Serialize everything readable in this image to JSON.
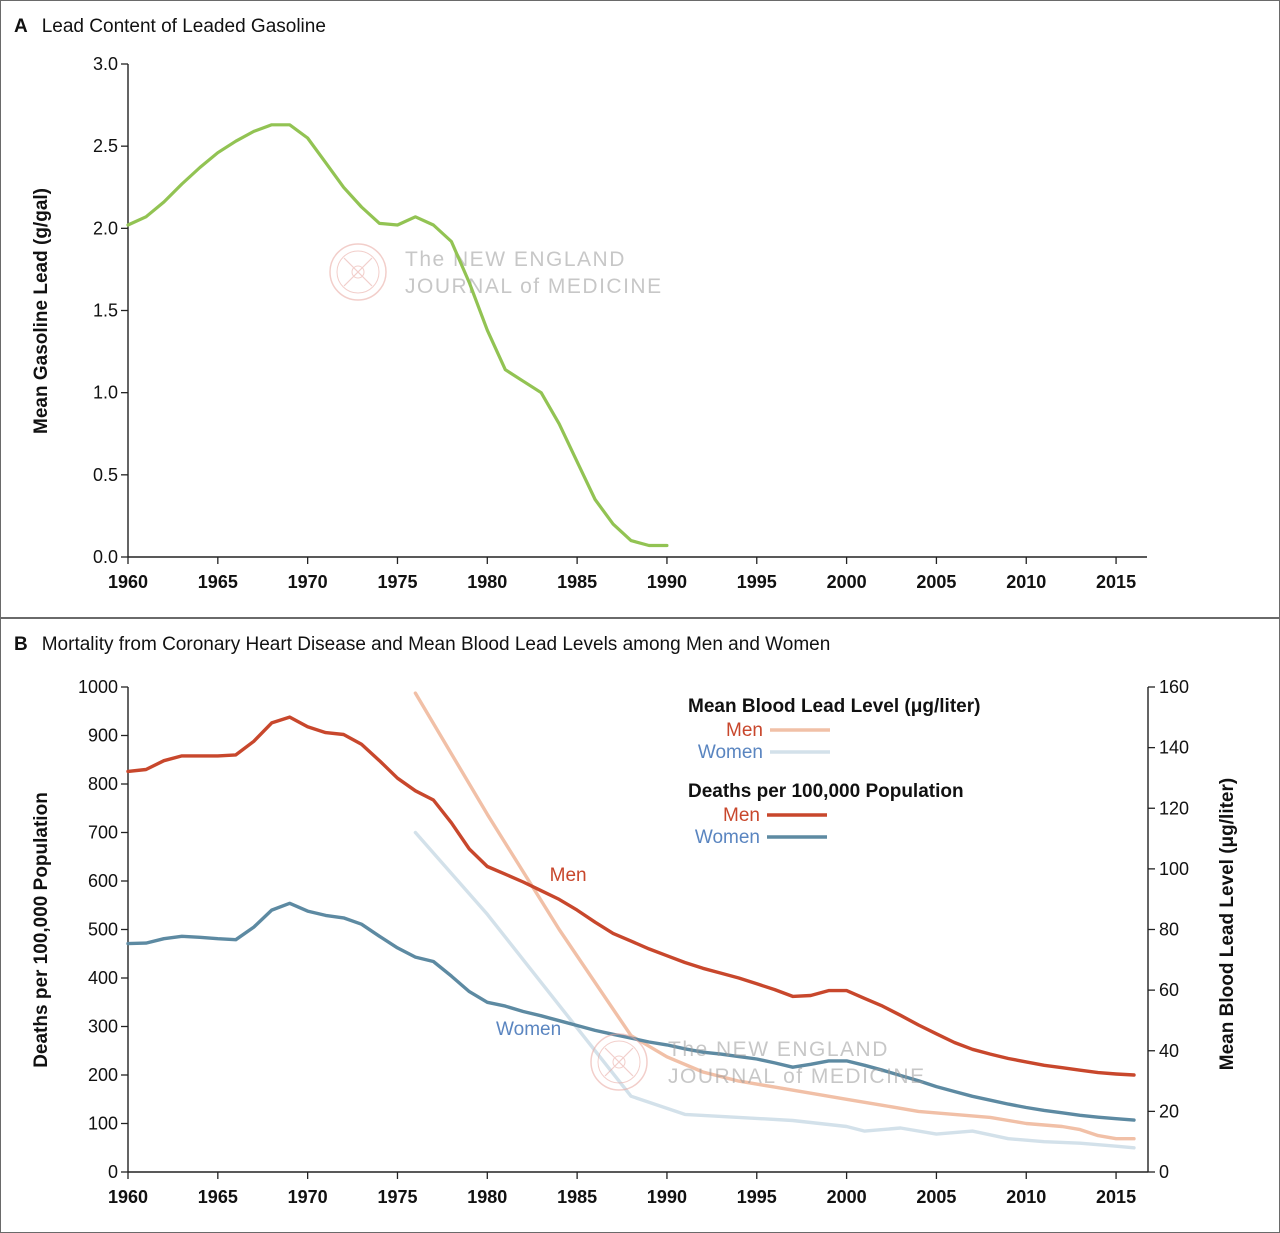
{
  "watermark": {
    "line1": "The NEW ENGLAND",
    "line2": "JOURNAL of MEDICINE"
  },
  "panelA": {
    "letter": "A",
    "title": "Lead Content of Leaded Gasoline",
    "chart_data": {
      "type": "line",
      "xlabel": "",
      "ylabel": "Mean Gasoline Lead (g/gal)",
      "xlim": [
        1960,
        2017
      ],
      "ylim": [
        0,
        3.0
      ],
      "xticks": [
        1960,
        1965,
        1970,
        1975,
        1980,
        1985,
        1990,
        1995,
        2000,
        2005,
        2010,
        2015
      ],
      "yticks": [
        0.0,
        0.5,
        1.0,
        1.5,
        2.0,
        2.5,
        3.0
      ],
      "ytick_labels": [
        "0.0",
        "0.5",
        "1.0",
        "1.5",
        "2.0",
        "2.5",
        "3.0"
      ],
      "grid": false,
      "series": [
        {
          "color": "#92c353",
          "x": [
            1960,
            1961,
            1962,
            1963,
            1964,
            1965,
            1966,
            1967,
            1968,
            1969,
            1970,
            1971,
            1972,
            1973,
            1974,
            1975,
            1976,
            1977,
            1978,
            1979,
            1980,
            1981,
            1982,
            1983,
            1984,
            1985,
            1986,
            1987,
            1988,
            1989,
            1990
          ],
          "y": [
            2.02,
            2.07,
            2.16,
            2.27,
            2.37,
            2.46,
            2.53,
            2.59,
            2.63,
            2.63,
            2.55,
            2.4,
            2.25,
            2.13,
            2.03,
            2.02,
            2.07,
            2.02,
            1.92,
            1.67,
            1.38,
            1.14,
            1.07,
            1.0,
            0.81,
            0.58,
            0.35,
            0.2,
            0.1,
            0.07,
            0.07
          ]
        }
      ]
    }
  },
  "panelB": {
    "letter": "B",
    "title": "Mortality from Coronary Heart Disease and Mean Blood Lead Levels among Men and Women",
    "chart_data": {
      "type": "line",
      "xlabel": "",
      "ylabel": "Deaths per 100,000 Population",
      "y2label": "Mean Blood Lead Level (μg/liter)",
      "xlim": [
        1960,
        2017
      ],
      "ylim": [
        0,
        1000
      ],
      "y2lim": [
        0,
        160
      ],
      "xticks": [
        1960,
        1965,
        1970,
        1975,
        1980,
        1985,
        1990,
        1995,
        2000,
        2005,
        2010,
        2015
      ],
      "yticks": [
        0,
        100,
        200,
        300,
        400,
        500,
        600,
        700,
        800,
        900,
        1000
      ],
      "y2ticks": [
        0,
        20,
        40,
        60,
        80,
        100,
        120,
        140,
        160
      ],
      "grid": false,
      "legend_placement": "top-right",
      "annotations": [
        {
          "text": "Men",
          "x": 1984.5,
          "y": 600,
          "color": "#c8472c"
        },
        {
          "text": "Women",
          "x": 1982.3,
          "y": 282,
          "color": "#5a85c0"
        }
      ],
      "legend": {
        "group1_title": "Mean Blood Lead Level (μg/liter)",
        "group1_men": "Men",
        "group1_women": "Women",
        "group2_title": "Deaths per 100,000 Population",
        "group2_men": "Men",
        "group2_women": "Women"
      },
      "series": [
        {
          "name": "Men",
          "group": "Deaths per 100,000 Population",
          "axis": "left",
          "color": "#c8472c",
          "x": [
            1960,
            1961,
            1962,
            1963,
            1964,
            1965,
            1966,
            1967,
            1968,
            1969,
            1970,
            1971,
            1972,
            1973,
            1974,
            1975,
            1976,
            1977,
            1978,
            1979,
            1980,
            1981,
            1982,
            1983,
            1984,
            1985,
            1986,
            1987,
            1988,
            1989,
            1990,
            1991,
            1992,
            1993,
            1994,
            1995,
            1996,
            1997,
            1998,
            1999,
            2000,
            2001,
            2002,
            2003,
            2004,
            2005,
            2006,
            2007,
            2008,
            2009,
            2010,
            2011,
            2012,
            2013,
            2014,
            2015,
            2016
          ],
          "y": [
            826,
            830,
            848,
            858,
            858,
            858,
            860,
            888,
            926,
            938,
            918,
            906,
            902,
            882,
            848,
            812,
            786,
            767,
            720,
            666,
            630,
            614,
            598,
            580,
            562,
            540,
            515,
            492,
            476,
            460,
            446,
            432,
            420,
            410,
            400,
            388,
            376,
            362,
            364,
            374,
            374,
            358,
            342,
            323,
            303,
            285,
            267,
            253,
            243,
            234,
            227,
            220,
            215,
            210,
            205,
            202,
            200
          ]
        },
        {
          "name": "Women",
          "group": "Deaths per 100,000 Population",
          "axis": "left",
          "color": "#5d8aa2",
          "x": [
            1960,
            1961,
            1962,
            1963,
            1964,
            1965,
            1966,
            1967,
            1968,
            1969,
            1970,
            1971,
            1972,
            1973,
            1974,
            1975,
            1976,
            1977,
            1978,
            1979,
            1980,
            1981,
            1982,
            1983,
            1984,
            1985,
            1986,
            1987,
            1988,
            1989,
            1990,
            1991,
            1992,
            1993,
            1994,
            1995,
            1996,
            1997,
            1998,
            1999,
            2000,
            2001,
            2002,
            2003,
            2004,
            2005,
            2006,
            2007,
            2008,
            2009,
            2010,
            2011,
            2012,
            2013,
            2014,
            2015,
            2016
          ],
          "y": [
            471,
            472,
            481,
            486,
            484,
            481,
            479,
            505,
            540,
            554,
            538,
            529,
            524,
            511,
            486,
            462,
            443,
            434,
            404,
            372,
            350,
            342,
            331,
            322,
            312,
            302,
            292,
            284,
            276,
            268,
            262,
            254,
            247,
            243,
            238,
            233,
            225,
            216,
            222,
            229,
            229,
            220,
            210,
            199,
            188,
            176,
            166,
            156,
            148,
            140,
            133,
            127,
            122,
            117,
            113,
            110,
            107
          ]
        },
        {
          "name": "Men",
          "group": "Mean Blood Lead Level (μg/liter)",
          "axis": "right",
          "color": "#f1c0a7",
          "x": [
            1976,
            1980,
            1984,
            1988,
            1990,
            1992,
            1994,
            1996,
            1998,
            2000,
            2002,
            2004,
            2006,
            2008,
            2010,
            2012,
            2013,
            2014,
            2015,
            2016
          ],
          "y": [
            158,
            118,
            80,
            45,
            38,
            33,
            30,
            28,
            26,
            24,
            22,
            20,
            19,
            18,
            16,
            15,
            14,
            12,
            11,
            11
          ]
        },
        {
          "name": "Women",
          "group": "Mean Blood Lead Level (μg/liter)",
          "axis": "right",
          "color": "#d3e1ea",
          "x": [
            1976,
            1980,
            1984,
            1988,
            1991,
            1994,
            1997,
            2000,
            2001,
            2003,
            2005,
            2007,
            2009,
            2011,
            2013,
            2015,
            2016
          ],
          "y": [
            112,
            85,
            55,
            25,
            19,
            18,
            17,
            15,
            13.5,
            14.5,
            12.5,
            13.5,
            11,
            10,
            9.5,
            8.5,
            8
          ]
        }
      ]
    }
  }
}
